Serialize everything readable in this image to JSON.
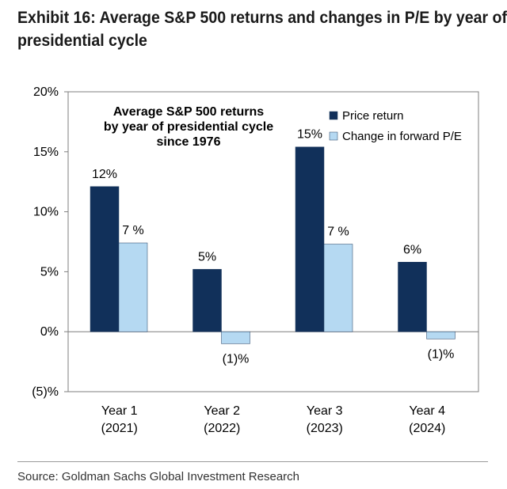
{
  "header": {
    "title_line1": "Exhibit 16: Average S&P 500 returns and changes in P/E by year of",
    "title_line2": "presidential cycle"
  },
  "footer": {
    "source": "Source: Goldman Sachs Global Investment Research"
  },
  "colors": {
    "price_return": "#11305a",
    "pe_change": "#b5d9f2"
  },
  "chart_data": {
    "type": "bar",
    "title_lines": [
      "Average S&P 500 returns",
      "by year of presidential cycle",
      "since 1976"
    ],
    "categories": [
      {
        "line1": "Year 1",
        "line2": "(2021)"
      },
      {
        "line1": "Year 2",
        "line2": "(2022)"
      },
      {
        "line1": "Year 3",
        "line2": "(2023)"
      },
      {
        "line1": "Year 4",
        "line2": "(2024)"
      }
    ],
    "series": [
      {
        "name": "Price return",
        "values": [
          12.1,
          5.2,
          15.4,
          5.8
        ],
        "labels": [
          "12%",
          "5%",
          "15%",
          "6%"
        ]
      },
      {
        "name": "Change in forward P/E",
        "values": [
          7.4,
          -1.0,
          7.3,
          -0.6
        ],
        "labels": [
          "7 %",
          "(1)%",
          "7 %",
          "(1)%"
        ]
      }
    ],
    "yticks": [
      -5,
      0,
      5,
      10,
      15,
      20
    ],
    "ytick_labels": [
      "(5)%",
      "0%",
      "5%",
      "10%",
      "15%",
      "20%"
    ],
    "ylim": [
      -5,
      20
    ],
    "xlabel": "",
    "ylabel": "",
    "legend": "top-right"
  }
}
